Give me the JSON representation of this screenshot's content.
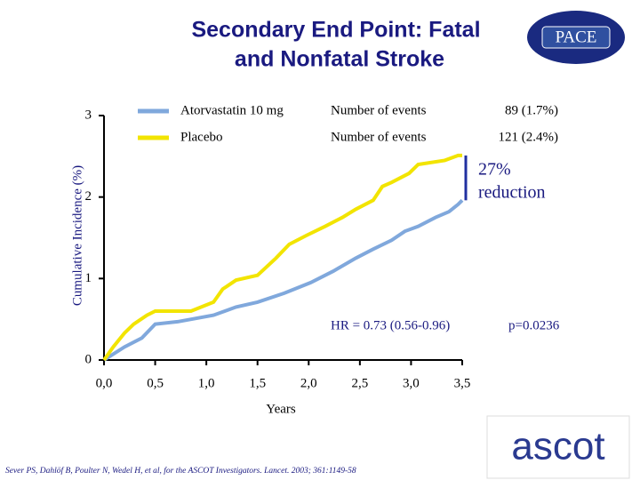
{
  "chart_data": {
    "type": "line",
    "title": [
      "Secondary End Point: Fatal",
      "and Nonfatal Stroke"
    ],
    "y_label": "Cumulative Incidence (%)",
    "x_label": "Years",
    "xlim": [
      0,
      3.5
    ],
    "ylim": [
      0,
      3
    ],
    "xticks": [
      {
        "value": 0,
        "label": "0,0"
      },
      {
        "value": 0.5,
        "label": "0,5"
      },
      {
        "value": 1,
        "label": "1,0"
      },
      {
        "value": 1.5,
        "label": "1,5"
      },
      {
        "value": 2,
        "label": "2,0"
      },
      {
        "value": 2.5,
        "label": "2,5"
      },
      {
        "value": 3,
        "label": "3,0"
      },
      {
        "value": 3.5,
        "label": "3,5"
      }
    ],
    "yticks": [
      0,
      1,
      2,
      3
    ],
    "events_label": "Number of events",
    "series": [
      {
        "name": "Atorvastatin 10 mg",
        "color": "#80a8dc",
        "events": "89 (1.7%)",
        "x": [
          0,
          0.2,
          0.37,
          0.5,
          0.72,
          1.07,
          1.29,
          1.5,
          1.76,
          2.02,
          2.24,
          2.46,
          2.63,
          2.81,
          2.94,
          3.07,
          3.24,
          3.37,
          3.46,
          3.5
        ],
        "values": [
          0,
          0.16,
          0.27,
          0.44,
          0.47,
          0.55,
          0.65,
          0.71,
          0.82,
          0.95,
          1.09,
          1.25,
          1.36,
          1.47,
          1.58,
          1.64,
          1.75,
          1.82,
          1.91,
          1.96
        ]
      },
      {
        "name": "Placebo",
        "color": "#f2e400",
        "events": "121 (2.4%)",
        "x": [
          0,
          0.09,
          0.2,
          0.29,
          0.42,
          0.5,
          0.85,
          1.07,
          1.16,
          1.29,
          1.5,
          1.68,
          1.81,
          1.98,
          2.16,
          2.33,
          2.46,
          2.63,
          2.72,
          2.81,
          2.98,
          3.07,
          3.33,
          3.46,
          3.5
        ],
        "values": [
          0,
          0.16,
          0.33,
          0.44,
          0.55,
          0.6,
          0.6,
          0.71,
          0.87,
          0.98,
          1.04,
          1.25,
          1.42,
          1.53,
          1.64,
          1.75,
          1.85,
          1.96,
          2.13,
          2.18,
          2.29,
          2.4,
          2.45,
          2.51,
          2.51
        ]
      }
    ],
    "annotations": {
      "reduction": [
        "27%",
        "reduction"
      ],
      "hr": "HR = 0.73 (0.56-0.96)",
      "p": "p=0.0236"
    },
    "source": "Sever PS, Dahlöf B, Poulter N, Wedel H, et al, for the ASCOT Investigators. Lancet. 2003; 361:1149-58",
    "logos": [
      "PACE",
      "ascot"
    ]
  }
}
